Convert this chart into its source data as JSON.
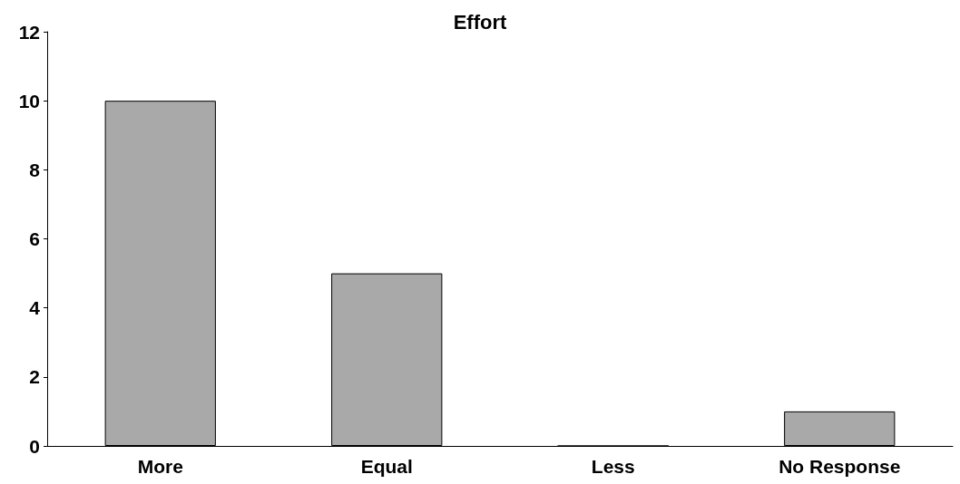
{
  "chart_data": {
    "type": "bar",
    "title": "Effort",
    "categories": [
      "More",
      "Equal",
      "Less",
      "No Response"
    ],
    "values": [
      10,
      5,
      0,
      1
    ],
    "color": "#a9a9a9",
    "ylim": [
      0,
      12
    ],
    "yticks": [
      0,
      2,
      4,
      6,
      8,
      10,
      12
    ],
    "grid": false
  }
}
